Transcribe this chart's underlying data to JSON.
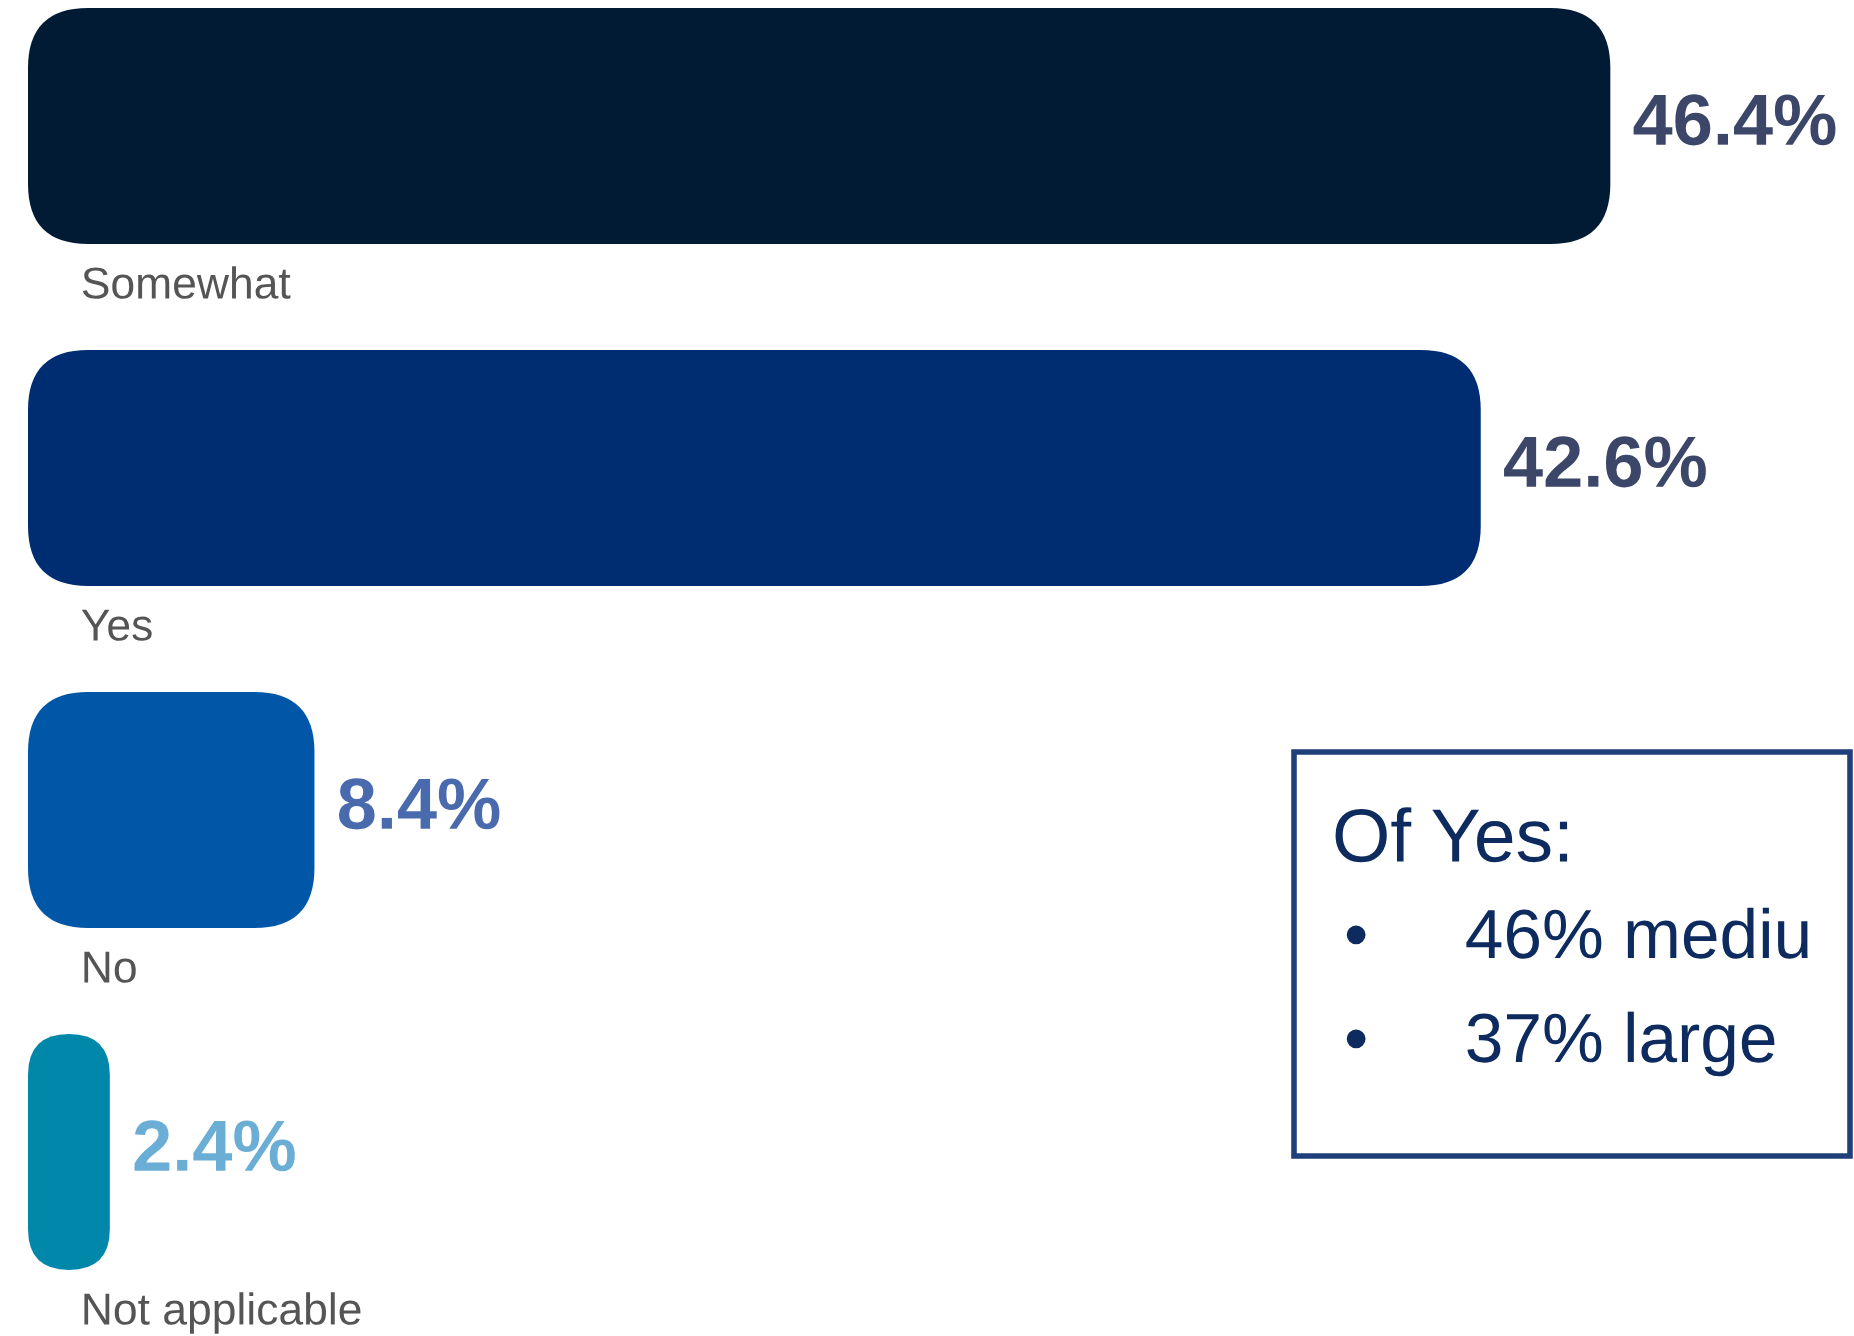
{
  "chart_data": {
    "type": "bar",
    "orientation": "horizontal",
    "categories": [
      "Somewhat",
      "Yes",
      "No",
      "Not applicable"
    ],
    "values": [
      46.4,
      42.6,
      8.4,
      2.4
    ],
    "colors": [
      "#021b35",
      "#002d72",
      "#0057a8",
      "#0087aa"
    ],
    "value_labels": [
      "46.4%",
      "42.6%",
      "8.4%",
      "2.4%"
    ],
    "annotations": [
      "Of Yes:",
      "•     46% mediu",
      "•     37% large"
    ],
    "legend": false
  }
}
